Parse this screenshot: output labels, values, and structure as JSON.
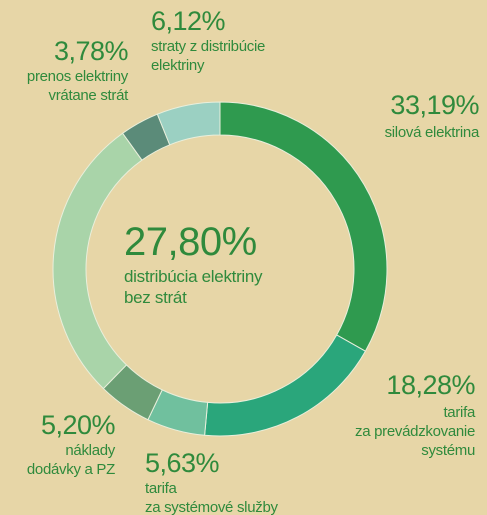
{
  "chart_data": {
    "type": "donut",
    "categories": [
      "silová elektrina",
      "tarifa\nza prevádzkovanie\nsystému",
      "tarifa\nza systémové služby",
      "náklady\ndodávky a PZ",
      "distribúcia elektriny\nbez strát",
      "prenos elektriny\nvrátane strát",
      "straty z distribúcie\nelektriny"
    ],
    "values": [
      33.19,
      18.28,
      5.63,
      5.2,
      27.8,
      3.78,
      6.12
    ],
    "value_labels": [
      "33,19%",
      "18,28%",
      "5,63%",
      "5,20%",
      "27,80%",
      "3,78%",
      "6,12%"
    ],
    "colors": [
      "#2f9a4f",
      "#2aa67b",
      "#70c09e",
      "#6b9f74",
      "#a9d4a9",
      "#5b8b79",
      "#9bd0c2"
    ]
  }
}
